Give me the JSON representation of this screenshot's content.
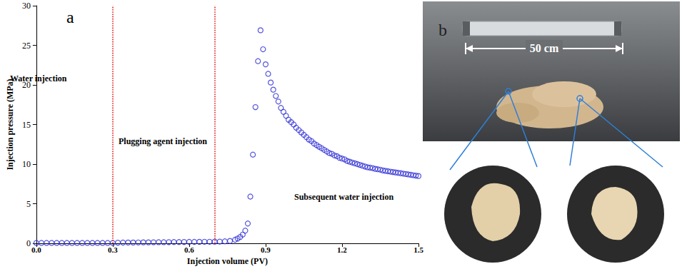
{
  "chart_data": {
    "type": "scatter",
    "panel_label": "a",
    "x_label": "Injection volume (PV)",
    "y_label": "Injection pressure (MPa)",
    "annotations": [
      "Water injection",
      "Plugging agent injection",
      "Subsequent water injection"
    ],
    "x": [
      0,
      0.02,
      0.04,
      0.06,
      0.08,
      0.1,
      0.12,
      0.14,
      0.16,
      0.18,
      0.2,
      0.22,
      0.24,
      0.26,
      0.28,
      0.3,
      0.32,
      0.34,
      0.36,
      0.38,
      0.4,
      0.42,
      0.44,
      0.46,
      0.48,
      0.5,
      0.52,
      0.54,
      0.56,
      0.58,
      0.6,
      0.62,
      0.64,
      0.66,
      0.68,
      0.7,
      0.72,
      0.74,
      0.76,
      0.78,
      0.79,
      0.8,
      0.81,
      0.82,
      0.83,
      0.84,
      0.85,
      0.86,
      0.87,
      0.88,
      0.89,
      0.9,
      0.91,
      0.92,
      0.93,
      0.94,
      0.95,
      0.96,
      0.97,
      0.98,
      0.99,
      1.0,
      1.01,
      1.02,
      1.03,
      1.04,
      1.05,
      1.06,
      1.07,
      1.08,
      1.09,
      1.1,
      1.11,
      1.12,
      1.13,
      1.14,
      1.15,
      1.16,
      1.17,
      1.18,
      1.19,
      1.2,
      1.21,
      1.22,
      1.23,
      1.24,
      1.25,
      1.26,
      1.27,
      1.28,
      1.29,
      1.3,
      1.31,
      1.32,
      1.33,
      1.34,
      1.35,
      1.36,
      1.37,
      1.38,
      1.39,
      1.4,
      1.41,
      1.42,
      1.43,
      1.44,
      1.45,
      1.46,
      1.47,
      1.48,
      1.49,
      1.5
    ],
    "values": [
      0.05,
      0.05,
      0.05,
      0.05,
      0.05,
      0.05,
      0.05,
      0.05,
      0.05,
      0.05,
      0.05,
      0.05,
      0.05,
      0.05,
      0.05,
      0.05,
      0.08,
      0.09,
      0.1,
      0.1,
      0.11,
      0.12,
      0.12,
      0.13,
      0.14,
      0.14,
      0.15,
      0.16,
      0.16,
      0.17,
      0.18,
      0.18,
      0.19,
      0.2,
      0.2,
      0.21,
      0.22,
      0.25,
      0.3,
      0.45,
      0.6,
      0.8,
      1.1,
      1.6,
      2.5,
      5.9,
      11.2,
      17.2,
      23.0,
      26.9,
      24.5,
      22.6,
      21.4,
      20.3,
      19.4,
      18.6,
      17.9,
      17.1,
      16.6,
      16.1,
      15.6,
      15.3,
      15.0,
      14.6,
      14.3,
      14.0,
      13.7,
      13.4,
      13.1,
      12.9,
      12.6,
      12.4,
      12.2,
      12.0,
      11.8,
      11.6,
      11.4,
      11.3,
      11.1,
      11.0,
      10.8,
      10.7,
      10.6,
      10.4,
      10.3,
      10.2,
      10.1,
      10.0,
      9.9,
      9.8,
      9.7,
      9.6,
      9.55,
      9.5,
      9.4,
      9.35,
      9.3,
      9.2,
      9.15,
      9.1,
      9.05,
      9.0,
      8.95,
      8.9,
      8.85,
      8.8,
      8.75,
      8.7,
      8.65,
      8.6,
      8.55,
      8.5
    ],
    "color": "#2a2ad4",
    "marker": "circle_open",
    "xlim": [
      0,
      1.5
    ],
    "xticks": [
      {
        "value": 0,
        "label": "0.0"
      },
      0.3,
      0.6,
      0.9,
      1.2,
      1.5
    ],
    "ylim": [
      0,
      30
    ],
    "yticks": [
      0,
      5,
      10,
      15,
      20,
      25,
      30
    ],
    "grid": false,
    "reference_lines": {
      "x": [
        0.3,
        0.7
      ],
      "color": "#e0201c",
      "line_style": "dotted"
    }
  },
  "photo_panel": {
    "label": "b",
    "scale_text": "50 cm"
  }
}
